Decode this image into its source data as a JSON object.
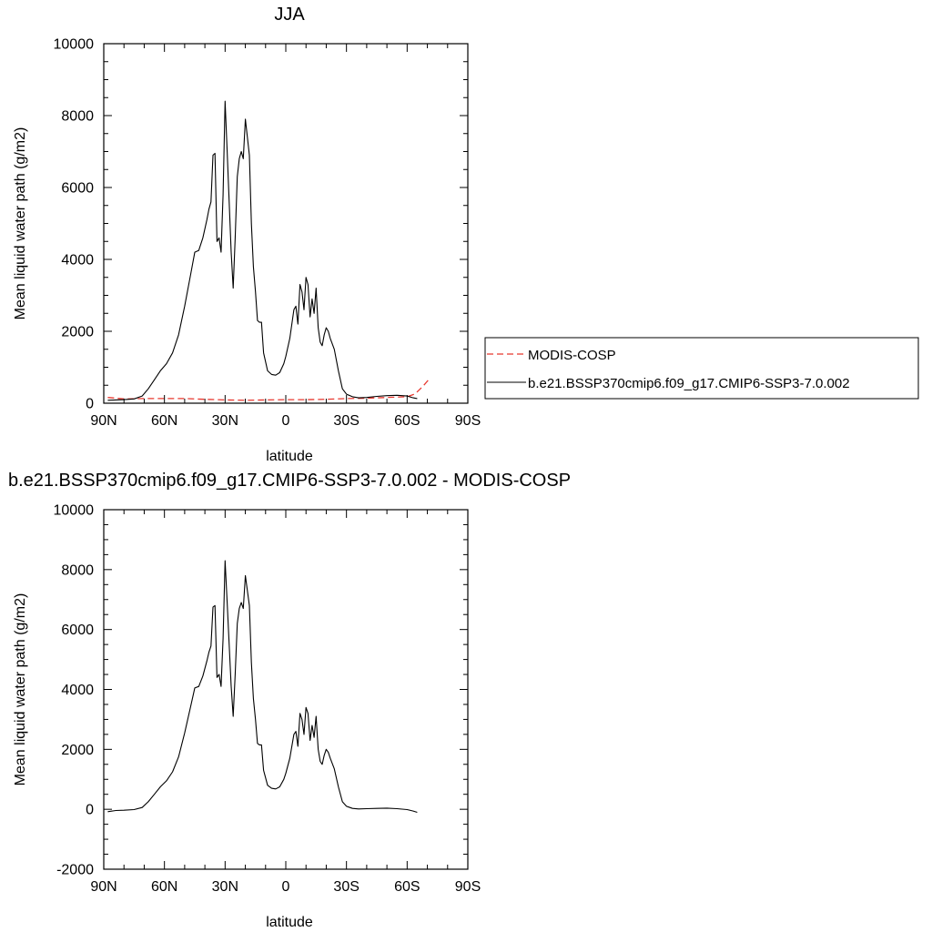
{
  "chart_data": [
    {
      "type": "line",
      "title": "JJA",
      "xlabel": "latitude",
      "ylabel": "Mean liquid water path (g/m2)",
      "x_tick_labels": [
        "90N",
        "60N",
        "30N",
        "0",
        "30S",
        "60S",
        "90S"
      ],
      "y_tick_labels": [
        "0",
        "2000",
        "4000",
        "6000",
        "8000",
        "10000"
      ],
      "xlim": [
        90,
        -90
      ],
      "ylim": [
        0,
        10000
      ],
      "legend_position": "right",
      "series": [
        {
          "name": "MODIS-COSP",
          "color": "#e8382f",
          "dash": true,
          "x": [
            88,
            80,
            70,
            60,
            50,
            40,
            30,
            20,
            10,
            0,
            -10,
            -20,
            -30,
            -40,
            -50,
            -60,
            -64,
            -68,
            -71
          ],
          "y": [
            160,
            120,
            130,
            130,
            130,
            110,
            90,
            80,
            90,
            100,
            100,
            110,
            130,
            140,
            160,
            180,
            260,
            480,
            680
          ]
        },
        {
          "name": "b.e21.BSSP370cmip6.f09_g17.CMIP6-SSP3-7.0.002",
          "color": "#000000",
          "dash": false,
          "x": [
            88,
            84,
            80,
            75,
            71,
            68,
            65,
            62,
            59,
            56,
            53,
            50,
            47,
            45,
            43,
            41,
            39,
            38,
            37,
            36,
            35,
            34,
            33,
            32,
            31,
            30,
            29,
            28,
            27,
            26,
            25,
            24,
            23,
            22,
            21,
            20,
            19,
            18,
            17,
            16,
            15,
            14,
            13,
            12,
            11,
            9,
            7,
            5,
            3,
            1,
            0,
            -2,
            -4,
            -5,
            -6,
            -7,
            -8,
            -9,
            -10,
            -11,
            -12,
            -13,
            -14,
            -15,
            -16,
            -17,
            -18,
            -19,
            -20,
            -21,
            -22,
            -24,
            -26,
            -28,
            -30,
            -33,
            -36,
            -40,
            -45,
            -50,
            -55,
            -60,
            -63,
            -65
          ],
          "y": [
            80,
            90,
            100,
            120,
            200,
            400,
            650,
            900,
            1100,
            1400,
            1900,
            2700,
            3600,
            4200,
            4250,
            4600,
            5100,
            5400,
            5600,
            6900,
            6950,
            4500,
            4600,
            4200,
            5800,
            8400,
            7000,
            5600,
            4200,
            3200,
            4600,
            6300,
            6800,
            7000,
            6800,
            7900,
            7400,
            6900,
            5000,
            3800,
            3100,
            2300,
            2250,
            2250,
            1400,
            900,
            800,
            780,
            850,
            1100,
            1300,
            1800,
            2600,
            2700,
            2200,
            3300,
            3100,
            2600,
            3500,
            3300,
            2400,
            2900,
            2500,
            3200,
            2100,
            1700,
            1600,
            1900,
            2100,
            2000,
            1800,
            1500,
            900,
            400,
            250,
            180,
            150,
            160,
            190,
            210,
            220,
            200,
            150,
            130
          ]
        }
      ]
    },
    {
      "type": "line",
      "title": "b.e21.BSSP370cmip6.f09_g17.CMIP6-SSP3-7.0.002 - MODIS-COSP",
      "xlabel": "latitude",
      "ylabel": "Mean liquid water path (g/m2)",
      "x_tick_labels": [
        "90N",
        "60N",
        "30N",
        "0",
        "30S",
        "60S",
        "90S"
      ],
      "y_tick_labels": [
        "-2000",
        "0",
        "2000",
        "4000",
        "6000",
        "8000",
        "10000"
      ],
      "xlim": [
        90,
        -90
      ],
      "ylim": [
        -2000,
        10000
      ],
      "series": [
        {
          "color": "#000000",
          "dash": false,
          "x": [
            88,
            84,
            80,
            75,
            71,
            68,
            65,
            62,
            59,
            56,
            53,
            50,
            47,
            45,
            43,
            41,
            39,
            38,
            37,
            36,
            35,
            34,
            33,
            32,
            31,
            30,
            29,
            28,
            27,
            26,
            25,
            24,
            23,
            22,
            21,
            20,
            19,
            18,
            17,
            16,
            15,
            14,
            13,
            12,
            11,
            9,
            7,
            5,
            3,
            1,
            0,
            -2,
            -4,
            -5,
            -6,
            -7,
            -8,
            -9,
            -10,
            -11,
            -12,
            -13,
            -14,
            -15,
            -16,
            -17,
            -18,
            -19,
            -20,
            -21,
            -22,
            -24,
            -26,
            -28,
            -30,
            -33,
            -36,
            -40,
            -45,
            -50,
            -55,
            -60,
            -63,
            -65
          ],
          "y": [
            -80,
            -40,
            -30,
            -10,
            60,
            250,
            500,
            750,
            950,
            1250,
            1750,
            2550,
            3450,
            4050,
            4100,
            4450,
            4950,
            5250,
            5450,
            6750,
            6800,
            4400,
            4500,
            4100,
            5700,
            8300,
            6900,
            5500,
            4100,
            3100,
            4500,
            6200,
            6700,
            6900,
            6700,
            7800,
            7300,
            6800,
            4900,
            3700,
            3000,
            2200,
            2150,
            2150,
            1300,
            800,
            700,
            680,
            750,
            1000,
            1200,
            1700,
            2500,
            2600,
            2100,
            3200,
            3000,
            2500,
            3400,
            3200,
            2300,
            2800,
            2400,
            3100,
            2000,
            1600,
            1500,
            1800,
            2000,
            1900,
            1700,
            1350,
            750,
            250,
            100,
            30,
            10,
            20,
            30,
            40,
            20,
            -10,
            -60,
            -100
          ]
        }
      ]
    }
  ]
}
